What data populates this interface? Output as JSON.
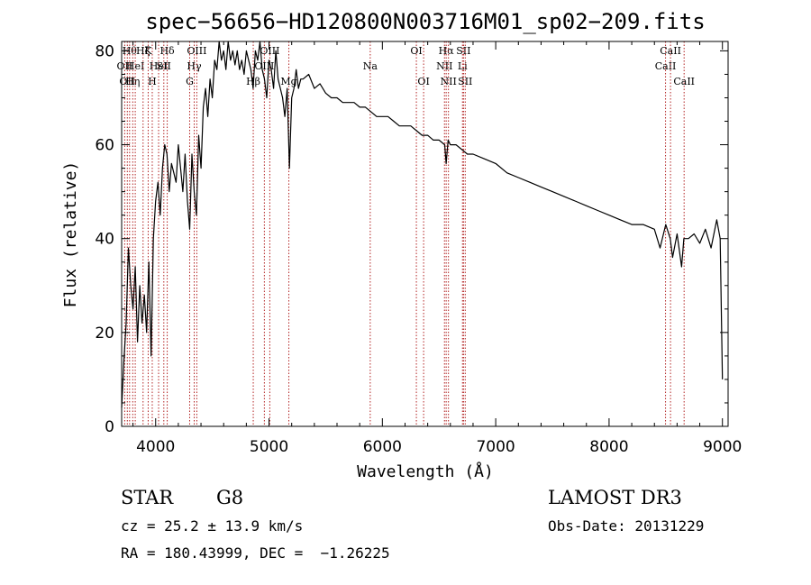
{
  "chart_data": {
    "type": "line",
    "title": "spec−56656−HD120800N003716M01_sp02−209.fits",
    "xlabel": "Wavelength (Å)",
    "ylabel": "Flux (relative)",
    "xlim": [
      3700,
      9050
    ],
    "ylim": [
      0,
      82
    ],
    "xticks": [
      4000,
      5000,
      6000,
      7000,
      8000,
      9000
    ],
    "xtick_labels": [
      "4000",
      "5000",
      "6000",
      "7000",
      "8000",
      "9000"
    ],
    "yticks": [
      0,
      20,
      40,
      60,
      80
    ],
    "ytick_labels": [
      "0",
      "20",
      "40",
      "60",
      "80"
    ],
    "grid": false,
    "series": [
      {
        "name": "flux",
        "x": [
          3700,
          3720,
          3740,
          3760,
          3780,
          3800,
          3820,
          3840,
          3860,
          3880,
          3900,
          3920,
          3940,
          3960,
          3980,
          4000,
          4020,
          4040,
          4060,
          4080,
          4100,
          4120,
          4140,
          4160,
          4180,
          4200,
          4220,
          4240,
          4260,
          4280,
          4300,
          4320,
          4340,
          4360,
          4380,
          4400,
          4420,
          4440,
          4460,
          4480,
          4500,
          4520,
          4540,
          4560,
          4580,
          4600,
          4620,
          4640,
          4660,
          4680,
          4700,
          4720,
          4740,
          4760,
          4780,
          4800,
          4820,
          4840,
          4860,
          4880,
          4900,
          4920,
          4940,
          4960,
          4980,
          5000,
          5020,
          5040,
          5060,
          5080,
          5100,
          5120,
          5140,
          5160,
          5180,
          5200,
          5220,
          5240,
          5260,
          5280,
          5300,
          5350,
          5400,
          5450,
          5500,
          5550,
          5600,
          5650,
          5700,
          5750,
          5800,
          5850,
          5900,
          5950,
          6000,
          6050,
          6100,
          6150,
          6200,
          6250,
          6300,
          6350,
          6400,
          6450,
          6500,
          6550,
          6563,
          6580,
          6600,
          6650,
          6700,
          6750,
          6800,
          6900,
          7000,
          7100,
          7200,
          7300,
          7400,
          7500,
          7600,
          7700,
          7800,
          7900,
          8000,
          8100,
          8200,
          8300,
          8400,
          8450,
          8500,
          8540,
          8560,
          8600,
          8640,
          8660,
          8700,
          8750,
          8800,
          8850,
          8900,
          8950,
          8980,
          9000
        ],
        "y": [
          4,
          14,
          22,
          38,
          30,
          25,
          34,
          18,
          30,
          22,
          28,
          20,
          35,
          15,
          40,
          48,
          52,
          45,
          55,
          60,
          58,
          50,
          56,
          54,
          52,
          60,
          55,
          50,
          58,
          48,
          42,
          58,
          50,
          45,
          62,
          55,
          68,
          72,
          66,
          74,
          70,
          78,
          76,
          82,
          78,
          80,
          76,
          82,
          78,
          80,
          77,
          80,
          76,
          78,
          75,
          80,
          78,
          76,
          72,
          80,
          78,
          82,
          76,
          74,
          70,
          78,
          76,
          72,
          80,
          74,
          72,
          70,
          66,
          72,
          55,
          70,
          72,
          76,
          72,
          74,
          74,
          75,
          72,
          73,
          71,
          70,
          70,
          69,
          69,
          69,
          68,
          68,
          67,
          66,
          66,
          66,
          65,
          64,
          64,
          64,
          63,
          62,
          62,
          61,
          61,
          60,
          56,
          61,
          60,
          60,
          59,
          58,
          58,
          57,
          56,
          54,
          53,
          52,
          51,
          50,
          49,
          48,
          47,
          46,
          45,
          44,
          43,
          43,
          42,
          38,
          43,
          40,
          36,
          41,
          34,
          40,
          40,
          41,
          39,
          42,
          38,
          44,
          40,
          10
        ]
      }
    ],
    "lines": [
      {
        "x": 3727,
        "name": "OII",
        "row": 1
      },
      {
        "x": 3750,
        "name": "OII",
        "row": 2
      },
      {
        "x": 3770,
        "name": "Hθ",
        "row": 0
      },
      {
        "x": 3798,
        "name": "Hη",
        "row": 2
      },
      {
        "x": 3820,
        "name": "HeI",
        "row": 1
      },
      {
        "x": 3889,
        "name": "Hζ",
        "row": 0
      },
      {
        "x": 3934,
        "name": "K",
        "row": 0
      },
      {
        "x": 3970,
        "name": "H",
        "row": 2
      },
      {
        "x": 4026,
        "name": "HeI",
        "row": 1
      },
      {
        "x": 4072,
        "name": "SII",
        "row": 1
      },
      {
        "x": 4102,
        "name": "Hδ",
        "row": 0
      },
      {
        "x": 4300,
        "name": "G",
        "row": 2
      },
      {
        "x": 4340,
        "name": "Hγ",
        "row": 1
      },
      {
        "x": 4363,
        "name": "OIII",
        "row": 0
      },
      {
        "x": 4861,
        "name": "Hβ",
        "row": 2
      },
      {
        "x": 4959,
        "name": "OIII",
        "row": 1
      },
      {
        "x": 5007,
        "name": "OIII",
        "row": 0
      },
      {
        "x": 5175,
        "name": "Mg",
        "row": 2
      },
      {
        "x": 5893,
        "name": "Na",
        "row": 1
      },
      {
        "x": 6300,
        "name": "OI",
        "row": 0
      },
      {
        "x": 6364,
        "name": "OI",
        "row": 2
      },
      {
        "x": 6548,
        "name": "NII",
        "row": 1
      },
      {
        "x": 6563,
        "name": "Hα",
        "row": 0
      },
      {
        "x": 6583,
        "name": "NII",
        "row": 2
      },
      {
        "x": 6707,
        "name": "Li",
        "row": 1
      },
      {
        "x": 6716,
        "name": "SII",
        "row": 0
      },
      {
        "x": 6731,
        "name": "SII",
        "row": 2
      },
      {
        "x": 8498,
        "name": "CaII",
        "row": 1
      },
      {
        "x": 8542,
        "name": "CaII",
        "row": 0
      },
      {
        "x": 8662,
        "name": "CaII",
        "row": 2
      }
    ]
  },
  "info": {
    "class_label": "STAR",
    "subclass": "G8",
    "survey": "LAMOST DR3",
    "redshift": "cz = 25.2 ± 13.9 km/s",
    "obs_date": "Obs-Date: 20131229",
    "coords": "RA = 180.43999, DEC =  −1.26225"
  },
  "colors": {
    "spectrum": "#000000",
    "line_marker": "#b22222",
    "axis": "#000000"
  }
}
